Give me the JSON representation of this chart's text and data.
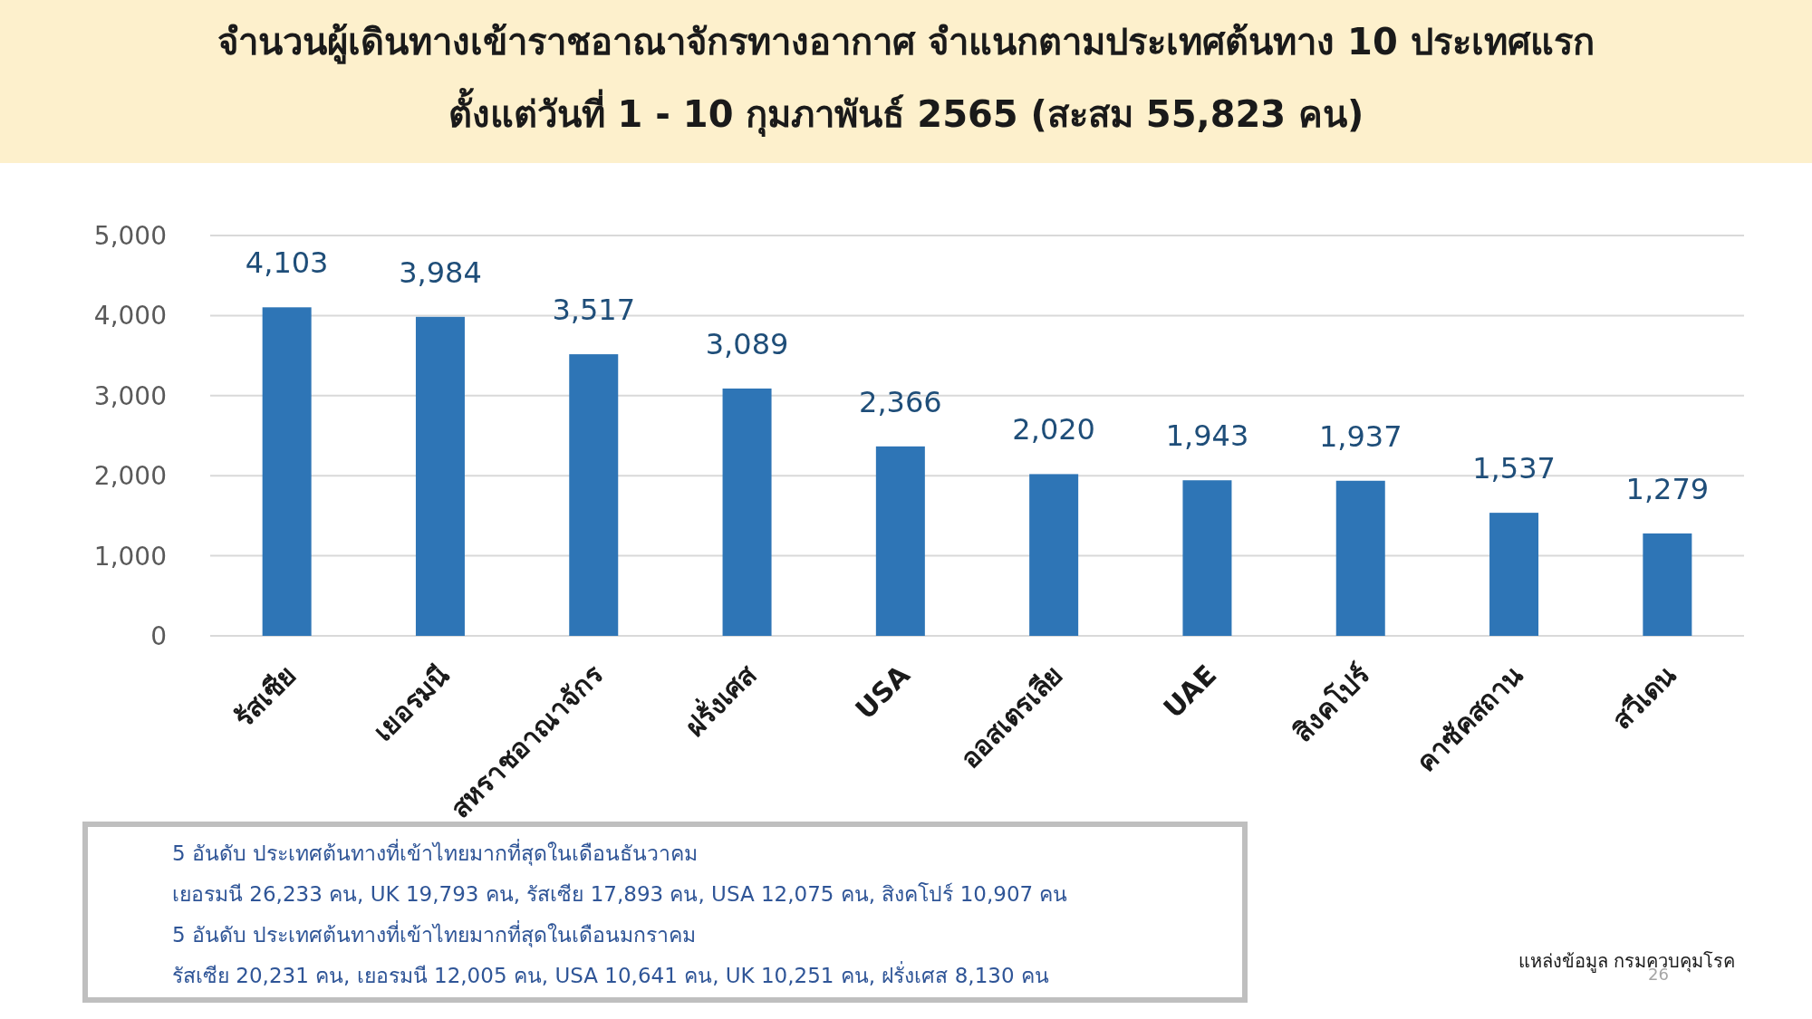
{
  "chart_data": {
    "type": "bar",
    "title": "จำนวนผู้เดินทางเข้าราชอาณาจักรทางอากาศ จำแนกตามประเทศต้นทาง 10 ประเทศแรก",
    "subtitle": "ตั้งแต่วันที่  1 - 10  กุมภาพันธ์ 2565  (สะสม 55,823 คน)",
    "categories": [
      "รัสเซีย",
      "เยอรมนี",
      "สหราชอาณาจักร",
      "ฝรั่งเศส",
      "USA",
      "ออสเตรเลีย",
      "UAE",
      "สิงคโปร์",
      "คาซัคสถาน",
      "สวีเดน"
    ],
    "values": [
      4103,
      3984,
      3517,
      3089,
      2366,
      2020,
      1943,
      1937,
      1537,
      1279
    ],
    "value_labels": [
      "4,103",
      "3,984",
      "3,517",
      "3,089",
      "2,366",
      "2,020",
      "1,943",
      "1,937",
      "1,537",
      "1,279"
    ],
    "color": "#2e75b6",
    "grid": "y",
    "ylim": [
      0,
      5000
    ],
    "yticks": [
      0,
      {
        "value": 1000,
        "label": "1,000"
      },
      {
        "value": 2000,
        "label": "2,000"
      },
      {
        "value": 3000,
        "label": "3,000"
      },
      {
        "value": 4000,
        "label": "4,000"
      },
      {
        "value": 5000,
        "label": "5,000"
      }
    ],
    "annotations": [
      "5 อันดับ ประเทศต้นทางที่เข้าไทยมากที่สุดในเดือนธันวาคม",
      "เยอรมนี  26,233  คน,  UK 19,793  คน,  รัสเซีย  17,893  คน,  USA  12,075  คน,  สิงคโปร์  10,907  คน",
      "5 อันดับ ประเทศต้นทางที่เข้าไทยมากที่สุดในเดือนมกราคม",
      "รัสเซีย  20,231  คน,  เยอรมนี 12,005  คน,  USA  10,641  คน,  UK  10,251  คน,  ฝรั่งเศส  8,130  คน",
      "แหล่งข้อมูล กรมควบคุมโรค",
      "26"
    ]
  }
}
